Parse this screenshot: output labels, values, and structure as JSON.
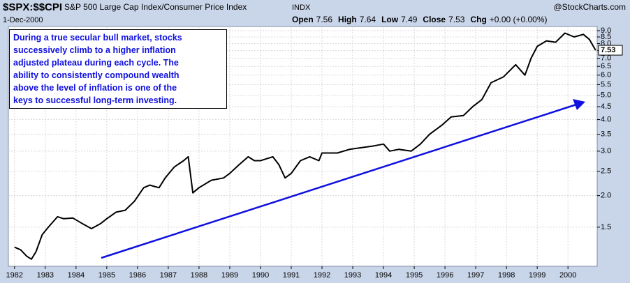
{
  "header": {
    "symbol": "$SPX:$$CPI",
    "description": "S&P 500 Large Cap Index/Consumer Price Index",
    "exchange": "INDX",
    "source": "@StockCharts.com",
    "date": "1-Dec-2000",
    "quote": [
      {
        "label": "Open",
        "value": 7.56
      },
      {
        "label": "High",
        "value": 7.64
      },
      {
        "label": "Low",
        "value": 7.49
      },
      {
        "label": "Close",
        "value": 7.53
      },
      {
        "label": "Chg",
        "value": "+0.00 (+0.00%)"
      }
    ]
  },
  "chart_data": {
    "type": "line",
    "log_scale": true,
    "grid": true,
    "color": "#000000",
    "annotation_color": "#1010e0",
    "annotation": [
      "During a true secular bull market, stocks",
      "successively climb to a higher inflation",
      "adjusted plateau during each cycle.  The",
      "ability to consistently compound wealth",
      "above the level of inflation is one of the",
      "keys to successful long-term investing."
    ],
    "last_value_label": "7.53",
    "x": [
      1982.0,
      1982.2,
      1982.4,
      1982.55,
      1982.7,
      1982.9,
      1983.1,
      1983.4,
      1983.6,
      1983.9,
      1984.2,
      1984.5,
      1984.8,
      1985.0,
      1985.3,
      1985.6,
      1985.9,
      1986.2,
      1986.4,
      1986.7,
      1986.9,
      1987.2,
      1987.5,
      1987.65,
      1987.8,
      1988.0,
      1988.4,
      1988.8,
      1989.0,
      1989.3,
      1989.6,
      1989.8,
      1990.0,
      1990.4,
      1990.6,
      1990.8,
      1991.0,
      1991.3,
      1991.6,
      1991.9,
      1992.0,
      1992.5,
      1992.9,
      1993.3,
      1993.7,
      1994.0,
      1994.2,
      1994.5,
      1994.9,
      1995.2,
      1995.5,
      1995.9,
      1996.2,
      1996.6,
      1996.9,
      1997.2,
      1997.5,
      1997.9,
      1998.3,
      1998.6,
      1998.8,
      1999.0,
      1999.3,
      1999.6,
      1999.9,
      2000.2,
      2000.5,
      2000.7,
      2000.9
    ],
    "series": [
      {
        "name": "$SPX:$$CPI",
        "color": "#000000",
        "values": [
          1.25,
          1.22,
          1.15,
          1.12,
          1.2,
          1.4,
          1.5,
          1.65,
          1.62,
          1.63,
          1.55,
          1.48,
          1.55,
          1.62,
          1.72,
          1.75,
          1.9,
          2.15,
          2.2,
          2.15,
          2.35,
          2.6,
          2.75,
          2.85,
          2.05,
          2.15,
          2.3,
          2.35,
          2.45,
          2.65,
          2.85,
          2.75,
          2.75,
          2.85,
          2.65,
          2.35,
          2.45,
          2.75,
          2.85,
          2.75,
          2.95,
          2.95,
          3.05,
          3.1,
          3.15,
          3.2,
          3.0,
          3.05,
          3.0,
          3.2,
          3.5,
          3.8,
          4.1,
          4.15,
          4.5,
          4.8,
          5.6,
          5.9,
          6.6,
          6.0,
          7.0,
          7.8,
          8.2,
          8.1,
          8.8,
          8.5,
          8.7,
          8.3,
          7.53
        ]
      }
    ],
    "xlim": [
      1981.8,
      2000.95
    ],
    "xticks": [
      1982,
      1983,
      1984,
      1985,
      1986,
      1987,
      1988,
      1989,
      1990,
      1991,
      1992,
      1993,
      1994,
      1995,
      1996,
      1997,
      1998,
      1999,
      2000
    ],
    "ylim": [
      1.05,
      9.35
    ],
    "yticks": [
      1.5,
      {
        "value": 2,
        "label": "2.0"
      },
      2.5,
      {
        "value": 3,
        "label": "3.0"
      },
      3.5,
      {
        "value": 4,
        "label": "4.0"
      },
      4.5,
      {
        "value": 5,
        "label": "5.0"
      },
      5.5,
      {
        "value": 6,
        "label": "6.0"
      },
      6.5,
      {
        "value": 7,
        "label": "7.0"
      },
      7.5,
      {
        "value": 8,
        "label": "8.0"
      },
      8.5,
      {
        "value": 9,
        "label": "9.0"
      }
    ]
  }
}
